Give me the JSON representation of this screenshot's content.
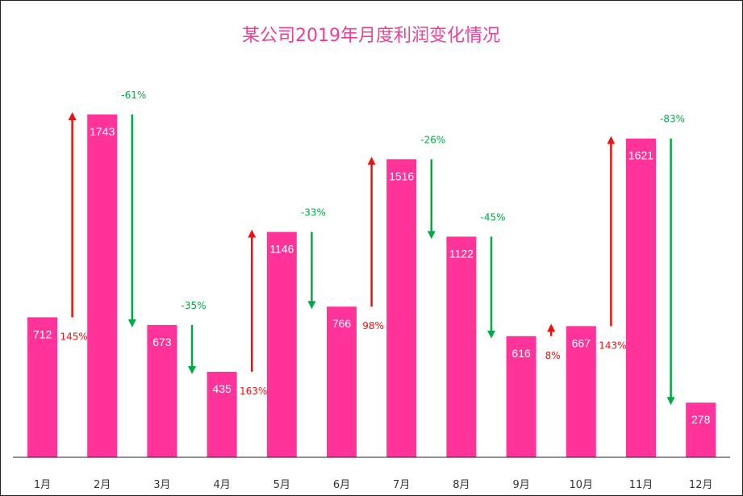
{
  "chart_data": {
    "type": "bar",
    "title": "某公司2019年月度利润变化情况",
    "categories": [
      "1月",
      "2月",
      "3月",
      "4月",
      "5月",
      "6月",
      "7月",
      "8月",
      "9月",
      "10月",
      "11月",
      "12月"
    ],
    "values": [
      712,
      1743,
      673,
      435,
      1146,
      766,
      1516,
      1122,
      616,
      667,
      1621,
      278
    ],
    "changes": [
      "145%",
      "-61%",
      "-35%",
      "163%",
      "-33%",
      "98%",
      "-26%",
      "-45%",
      "8%",
      "143%",
      "-83%"
    ],
    "ylim": [
      0,
      1800
    ],
    "grid": false,
    "legend": "none",
    "colors": {
      "bar": "#ff3399",
      "title": "#ee3d96",
      "increase": "#ee1111",
      "decrease": "#00aa44",
      "axis": "#222222"
    }
  }
}
